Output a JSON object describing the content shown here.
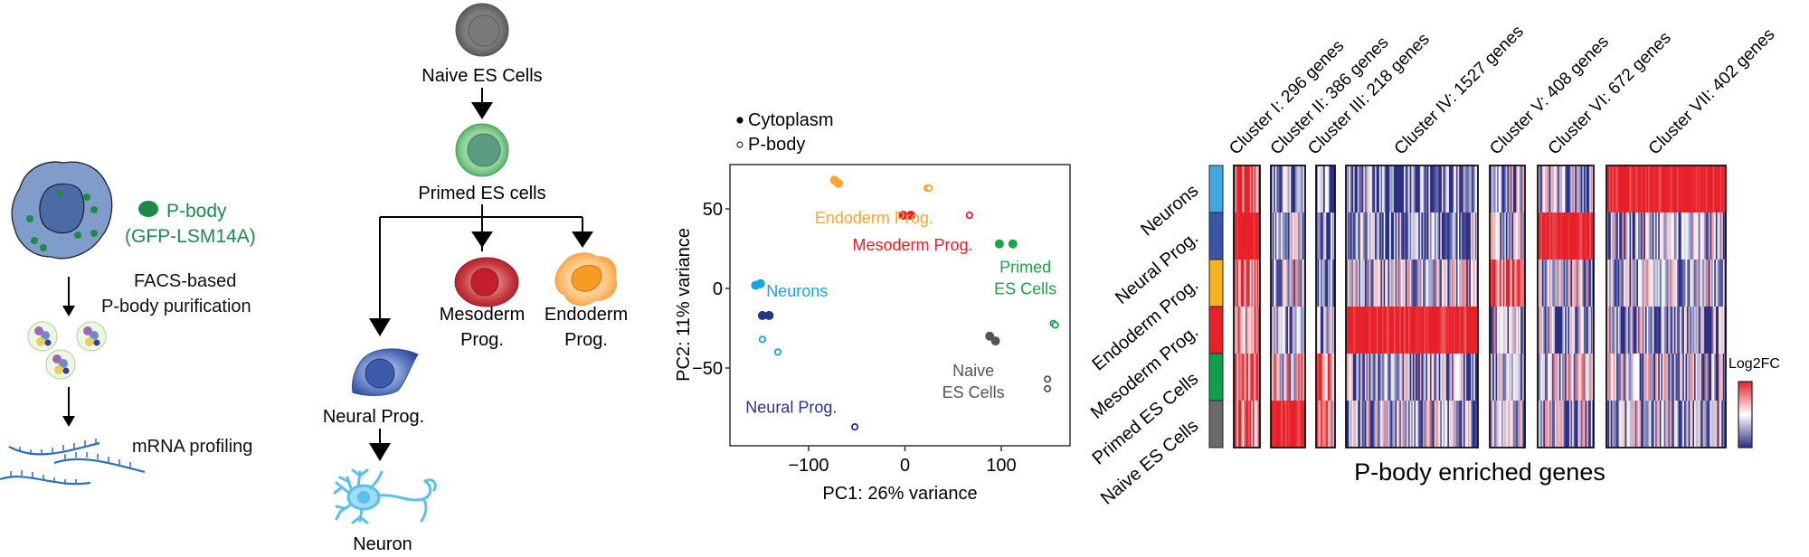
{
  "panel_a": {
    "pbody_label": "P-body",
    "pbody_marker": "(GFP-LSM14A)",
    "step1_line1": "FACS-based",
    "step1_line2": "P-body purification",
    "step2": "mRNA profiling",
    "colors": {
      "pbody_green": "#1e8a4a",
      "cell_blue": "#7f9ccb",
      "nucleus_blue": "#4a6aa8",
      "rna_blue": "#2f6db5"
    }
  },
  "panel_b": {
    "naive": "Naive ES Cells",
    "primed": "Primed ES cells",
    "mesoderm_l1": "Mesoderm",
    "mesoderm_l2": "Prog.",
    "endoderm_l1": "Endoderm",
    "endoderm_l2": "Prog.",
    "neural": "Neural Prog.",
    "neuron": "Neuron"
  },
  "chart_data": [
    {
      "type": "scatter",
      "title": "",
      "xlabel": "PC1: 26% variance",
      "ylabel": "PC2: 11% variance",
      "xlim": [
        -170,
        183
      ],
      "ylim": [
        -100,
        77
      ],
      "xticks": [
        -100,
        0,
        100
      ],
      "xtick_labels": [
        "−100",
        "0",
        "100"
      ],
      "yticks": [
        50,
        0,
        -50
      ],
      "ytick_labels": [
        "50",
        "0",
        "−50"
      ],
      "grid": false,
      "legend": {
        "placement": "top-left",
        "entries": [
          {
            "label": "Cytoplasm",
            "marker": "filled"
          },
          {
            "label": "P-body",
            "marker": "open"
          }
        ]
      },
      "groups": [
        {
          "name": "Endoderm Prog.",
          "color": "#f7a535",
          "label_lines": [
            "Endoderm Prog."
          ],
          "label_at": [
            -32,
            41
          ],
          "points": [
            {
              "x": -73,
              "y": 68,
              "type": "cytoplasm"
            },
            {
              "x": -69,
              "y": 66,
              "type": "cytoplasm"
            },
            {
              "x": 23,
              "y": 63,
              "type": "pbody"
            },
            {
              "x": 25,
              "y": 63,
              "type": "pbody"
            }
          ]
        },
        {
          "name": "Mesoderm Prog.",
          "color": "#e8202a",
          "label_lines": [
            "Mesoderm Prog."
          ],
          "label_at": [
            8,
            24
          ],
          "points": [
            {
              "x": -2,
              "y": 46,
              "type": "cytoplasm"
            },
            {
              "x": 6,
              "y": 46,
              "type": "cytoplasm"
            },
            {
              "x": 67,
              "y": 46,
              "type": "pbody"
            }
          ]
        },
        {
          "name": "Primed ES Cells",
          "color": "#1aa44a",
          "label_lines": [
            "Primed",
            "ES Cells"
          ],
          "label_at": [
            125,
            10
          ],
          "points": [
            {
              "x": 98,
              "y": 28,
              "type": "cytoplasm"
            },
            {
              "x": 112,
              "y": 28,
              "type": "cytoplasm"
            },
            {
              "x": 154,
              "y": -22,
              "type": "pbody"
            },
            {
              "x": 156,
              "y": -23,
              "type": "pbody"
            }
          ]
        },
        {
          "name": "Neurons",
          "color": "#1aa3e4",
          "label_lines": [
            "Neurons"
          ],
          "label_at": [
            -112,
            -5
          ],
          "points": [
            {
              "x": -155,
              "y": 2,
              "type": "cytoplasm"
            },
            {
              "x": -150,
              "y": 3,
              "type": "cytoplasm"
            },
            {
              "x": -148,
              "y": -32,
              "type": "pbody"
            },
            {
              "x": -132,
              "y": -40,
              "type": "pbody"
            }
          ]
        },
        {
          "name": "Neural Prog.",
          "color": "#27348b",
          "label_lines": [
            "Neural Prog."
          ],
          "label_at": [
            -118,
            -78
          ],
          "points": [
            {
              "x": -148,
              "y": -17,
              "type": "cytoplasm"
            },
            {
              "x": -141,
              "y": -17,
              "type": "cytoplasm"
            },
            {
              "x": -52,
              "y": -87,
              "type": "pbody"
            }
          ]
        },
        {
          "name": "Naive ES Cells",
          "color": "#555555",
          "label_lines": [
            "Naive",
            "ES Cells"
          ],
          "label_at": [
            71,
            -55
          ],
          "points": [
            {
              "x": 88,
              "y": -30,
              "type": "cytoplasm"
            },
            {
              "x": 94,
              "y": -33,
              "type": "cytoplasm"
            },
            {
              "x": 148,
              "y": -57,
              "type": "pbody"
            },
            {
              "x": 148,
              "y": -63,
              "type": "pbody"
            }
          ]
        }
      ]
    },
    {
      "type": "heatmap",
      "title": "",
      "xlabel": "P-body enriched genes",
      "colorbar_label": "Log2FC",
      "colormap": [
        "#2a2f86",
        "#ffffff",
        "#e8202a"
      ],
      "rows": [
        {
          "label": "Neurons",
          "color": "#41a8e0"
        },
        {
          "label": "Neural Prog.",
          "color": "#3a56a6"
        },
        {
          "label": "Endoderm Prog.",
          "color": "#f9b11f"
        },
        {
          "label": "Mesoderm Prog.",
          "color": "#e8202a"
        },
        {
          "label": "Primed ES Cells",
          "color": "#0ea04b"
        },
        {
          "label": "Naive ES Cells",
          "color": "#6a6a6a"
        }
      ],
      "clusters": [
        {
          "name": "Cluster I",
          "genes": 296,
          "label": "Cluster I: 296 genes",
          "row_mean_log2fc": [
            0.8,
            1.0,
            0.6,
            0.6,
            0.7,
            0.6
          ]
        },
        {
          "name": "Cluster II",
          "genes": 386,
          "label": "Cluster II: 386 genes",
          "row_mean_log2fc": [
            -0.6,
            -0.3,
            -0.2,
            -0.3,
            0.0,
            0.9
          ]
        },
        {
          "name": "Cluster III",
          "genes": 218,
          "label": "Cluster III: 218 genes",
          "row_mean_log2fc": [
            -0.6,
            -0.5,
            -0.6,
            -0.5,
            0.8,
            0.1
          ]
        },
        {
          "name": "Cluster IV",
          "genes": 1527,
          "label": "Cluster IV: 1527 genes",
          "row_mean_log2fc": [
            -0.6,
            -0.6,
            -0.3,
            0.9,
            -0.3,
            -0.3
          ]
        },
        {
          "name": "Cluster V",
          "genes": 408,
          "label": "Cluster V: 408 genes",
          "row_mean_log2fc": [
            -0.3,
            -0.4,
            0.7,
            -0.2,
            -0.3,
            -0.2
          ]
        },
        {
          "name": "Cluster VI",
          "genes": 672,
          "label": "Cluster VI: 672 genes",
          "row_mean_log2fc": [
            -0.3,
            0.9,
            -0.3,
            -0.4,
            -0.1,
            -0.2
          ]
        },
        {
          "name": "Cluster VII",
          "genes": 402,
          "label": "Cluster VII: 402 genes",
          "row_mean_log2fc": [
            0.95,
            -0.4,
            -0.3,
            -0.4,
            -0.3,
            -0.4
          ]
        }
      ]
    }
  ]
}
